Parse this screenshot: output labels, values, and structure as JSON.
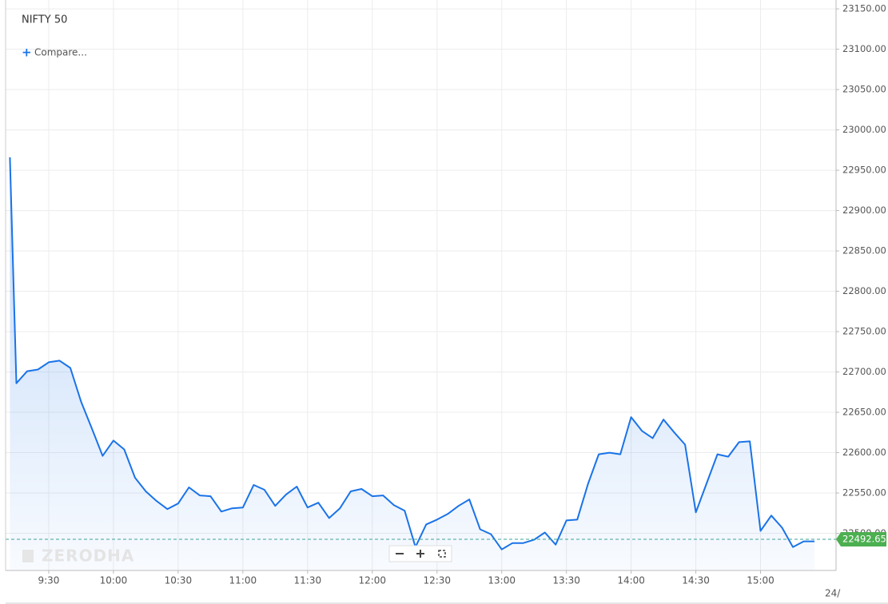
{
  "chart_data": {
    "type": "line",
    "title": "NIFTY 50",
    "compare_label": "Compare...",
    "watermark": "ZERODHA",
    "date_label": "24/",
    "color": "#1a73e8",
    "grid": true,
    "last_value": {
      "value": 22492.65,
      "label": "22492.65"
    },
    "x": [
      552,
      555,
      560,
      565,
      570,
      575,
      580,
      585,
      590,
      595,
      600,
      605,
      610,
      615,
      620,
      625,
      630,
      635,
      640,
      645,
      650,
      655,
      660,
      665,
      670,
      675,
      680,
      685,
      690,
      695,
      700,
      705,
      710,
      715,
      720,
      725,
      730,
      735,
      740,
      745,
      750,
      755,
      760,
      765,
      770,
      775,
      780,
      785,
      790,
      795,
      800,
      805,
      810,
      815,
      820,
      825,
      830,
      835,
      840,
      845,
      850,
      855,
      860,
      865,
      870,
      875,
      880,
      885,
      890,
      895,
      900,
      905,
      910,
      915,
      920,
      925
    ],
    "values": [
      22966,
      22686,
      22701,
      22703,
      22712,
      22714,
      22705,
      22663,
      22630,
      22596,
      22615,
      22604,
      22569,
      22552,
      22540,
      22530,
      22537,
      22557,
      22547,
      22546,
      22527,
      22531,
      22532,
      22560,
      22554,
      22534,
      22548,
      22558,
      22532,
      22538,
      22519,
      22531,
      22552,
      22555,
      22546,
      22547,
      22535,
      22528,
      22483,
      22511,
      22517,
      22524,
      22534,
      22542,
      22505,
      22499,
      22480,
      22488,
      22488,
      22492,
      22501,
      22486,
      22516,
      22517,
      22561,
      22598,
      22600,
      22598,
      22644,
      22627,
      22618,
      22641,
      22625,
      22610,
      22526,
      22562,
      22598,
      22595,
      22613,
      22614,
      22503,
      22522,
      22507,
      22483,
      22490,
      22490
    ],
    "xlim": [
      550,
      935
    ],
    "xticks": [
      {
        "value": 570,
        "label": "9:30"
      },
      {
        "value": 600,
        "label": "10:00"
      },
      {
        "value": 630,
        "label": "10:30"
      },
      {
        "value": 660,
        "label": "11:00"
      },
      {
        "value": 690,
        "label": "11:30"
      },
      {
        "value": 720,
        "label": "12:00"
      },
      {
        "value": 750,
        "label": "12:30"
      },
      {
        "value": 780,
        "label": "13:00"
      },
      {
        "value": 810,
        "label": "13:30"
      },
      {
        "value": 840,
        "label": "14:00"
      },
      {
        "value": 870,
        "label": "14:30"
      },
      {
        "value": 900,
        "label": "15:00"
      }
    ],
    "ylim": [
      22454,
      23161
    ],
    "yticks": [
      {
        "value": 22500,
        "label": "22500.00"
      },
      {
        "value": 22550,
        "label": "22550.00"
      },
      {
        "value": 22600,
        "label": "22600.00"
      },
      {
        "value": 22650,
        "label": "22650.00"
      },
      {
        "value": 22700,
        "label": "22700.00"
      },
      {
        "value": 22750,
        "label": "22750.00"
      },
      {
        "value": 22800,
        "label": "22800.00"
      },
      {
        "value": 22850,
        "label": "22850.00"
      },
      {
        "value": 22900,
        "label": "22900.00"
      },
      {
        "value": 22950,
        "label": "22950.00"
      },
      {
        "value": 23000,
        "label": "23000.00"
      },
      {
        "value": 23050,
        "label": "23050.00"
      },
      {
        "value": 23100,
        "label": "23100.00"
      },
      {
        "value": 23150,
        "label": "23150.00"
      }
    ]
  }
}
